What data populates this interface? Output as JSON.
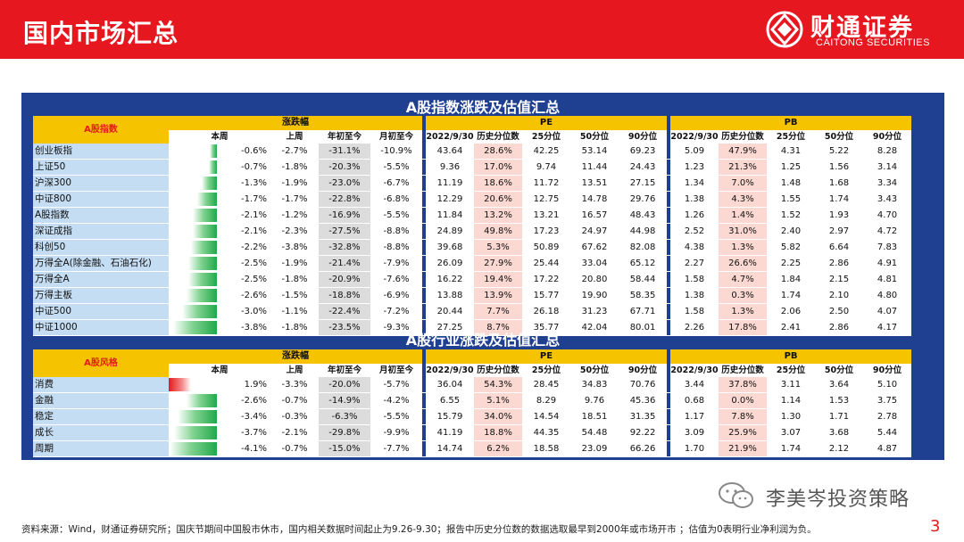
{
  "header": {
    "page_title": "国内市场汇总",
    "logo_cn": "财通证券",
    "logo_en": "CAITONG SECURITIES"
  },
  "colors": {
    "brand_red": "#e7171f",
    "panel_blue": "#1f3f91",
    "header_yellow": "#f6c300",
    "label_blue": "#c5ddf3",
    "highlight_pink": "#fbd8d2",
    "gain_red": "#e41b1b",
    "loss_green": "#21a84a"
  },
  "index_table": {
    "title": "A股指数涨跌及估值汇总",
    "row_header": "A股指数",
    "group_change": "涨跌幅",
    "group_pe": "PE",
    "group_pb": "PB",
    "columns": [
      "本周",
      "上周",
      "年初至今",
      "月初至今",
      "2022/9/30",
      "历史分位数",
      "25分位",
      "50分位",
      "90分位",
      "2022/9/30",
      "历史分位数",
      "25分位",
      "50分位",
      "90分位"
    ],
    "rows": [
      {
        "name": "创业板指",
        "week_pct": -0.6,
        "week": "-0.6%",
        "last_week": "-2.7%",
        "ytd": "-31.1%",
        "mtd": "-10.9%",
        "pe": "43.64",
        "pe_pct": "28.6%",
        "pe25": "42.25",
        "pe50": "53.14",
        "pe90": "69.23",
        "pb": "5.09",
        "pb_pct": "47.9%",
        "pb25": "4.31",
        "pb50": "5.22",
        "pb90": "8.28"
      },
      {
        "name": "上证50",
        "week_pct": -0.7,
        "week": "-0.7%",
        "last_week": "-1.8%",
        "ytd": "-20.3%",
        "mtd": "-5.5%",
        "pe": "9.36",
        "pe_pct": "17.0%",
        "pe25": "9.74",
        "pe50": "11.44",
        "pe90": "24.43",
        "pb": "1.23",
        "pb_pct": "21.3%",
        "pb25": "1.25",
        "pb50": "1.56",
        "pb90": "3.14"
      },
      {
        "name": "沪深300",
        "week_pct": -1.3,
        "week": "-1.3%",
        "last_week": "-1.9%",
        "ytd": "-23.0%",
        "mtd": "-6.7%",
        "pe": "11.19",
        "pe_pct": "18.6%",
        "pe25": "11.72",
        "pe50": "13.51",
        "pe90": "27.15",
        "pb": "1.34",
        "pb_pct": "7.0%",
        "pb25": "1.48",
        "pb50": "1.68",
        "pb90": "3.34"
      },
      {
        "name": "中证800",
        "week_pct": -1.7,
        "week": "-1.7%",
        "last_week": "-1.7%",
        "ytd": "-22.8%",
        "mtd": "-6.8%",
        "pe": "12.29",
        "pe_pct": "20.6%",
        "pe25": "12.75",
        "pe50": "14.78",
        "pe90": "29.76",
        "pb": "1.38",
        "pb_pct": "4.3%",
        "pb25": "1.55",
        "pb50": "1.74",
        "pb90": "3.43"
      },
      {
        "name": "A股指数",
        "week_pct": -2.1,
        "week": "-2.1%",
        "last_week": "-1.2%",
        "ytd": "-16.9%",
        "mtd": "-5.5%",
        "pe": "11.84",
        "pe_pct": "13.2%",
        "pe25": "13.21",
        "pe50": "16.57",
        "pe90": "48.43",
        "pb": "1.26",
        "pb_pct": "1.4%",
        "pb25": "1.52",
        "pb50": "1.93",
        "pb90": "4.70"
      },
      {
        "name": "深证成指",
        "week_pct": -2.1,
        "week": "-2.1%",
        "last_week": "-2.3%",
        "ytd": "-27.5%",
        "mtd": "-8.8%",
        "pe": "24.89",
        "pe_pct": "49.8%",
        "pe25": "17.23",
        "pe50": "24.97",
        "pe90": "44.98",
        "pb": "2.52",
        "pb_pct": "31.0%",
        "pb25": "2.40",
        "pb50": "2.97",
        "pb90": "4.72"
      },
      {
        "name": "科创50",
        "week_pct": -2.2,
        "week": "-2.2%",
        "last_week": "-3.8%",
        "ytd": "-32.8%",
        "mtd": "-8.8%",
        "pe": "39.68",
        "pe_pct": "5.3%",
        "pe25": "50.89",
        "pe50": "67.62",
        "pe90": "82.08",
        "pb": "4.38",
        "pb_pct": "1.3%",
        "pb25": "5.82",
        "pb50": "6.64",
        "pb90": "7.83"
      },
      {
        "name": "万得全A(除金融、石油石化)",
        "week_pct": -2.5,
        "week": "-2.5%",
        "last_week": "-1.9%",
        "ytd": "-21.4%",
        "mtd": "-7.9%",
        "pe": "26.09",
        "pe_pct": "27.9%",
        "pe25": "25.44",
        "pe50": "33.04",
        "pe90": "65.12",
        "pb": "2.27",
        "pb_pct": "26.6%",
        "pb25": "2.25",
        "pb50": "2.86",
        "pb90": "4.91"
      },
      {
        "name": "万得全A",
        "week_pct": -2.5,
        "week": "-2.5%",
        "last_week": "-1.8%",
        "ytd": "-20.9%",
        "mtd": "-7.6%",
        "pe": "16.22",
        "pe_pct": "19.4%",
        "pe25": "17.22",
        "pe50": "20.80",
        "pe90": "58.44",
        "pb": "1.58",
        "pb_pct": "4.7%",
        "pb25": "1.84",
        "pb50": "2.15",
        "pb90": "4.81"
      },
      {
        "name": "万得主板",
        "week_pct": -2.6,
        "week": "-2.6%",
        "last_week": "-1.5%",
        "ytd": "-18.8%",
        "mtd": "-6.9%",
        "pe": "13.88",
        "pe_pct": "13.9%",
        "pe25": "15.77",
        "pe50": "19.90",
        "pe90": "58.35",
        "pb": "1.38",
        "pb_pct": "0.3%",
        "pb25": "1.74",
        "pb50": "2.10",
        "pb90": "4.80"
      },
      {
        "name": "中证500",
        "week_pct": -3.0,
        "week": "-3.0%",
        "last_week": "-1.1%",
        "ytd": "-22.4%",
        "mtd": "-7.2%",
        "pe": "20.44",
        "pe_pct": "7.7%",
        "pe25": "26.18",
        "pe50": "31.23",
        "pe90": "67.71",
        "pb": "1.58",
        "pb_pct": "1.3%",
        "pb25": "2.06",
        "pb50": "2.50",
        "pb90": "4.07"
      },
      {
        "name": "中证1000",
        "week_pct": -3.8,
        "week": "-3.8%",
        "last_week": "-1.8%",
        "ytd": "-23.5%",
        "mtd": "-9.3%",
        "pe": "27.25",
        "pe_pct": "8.7%",
        "pe25": "35.77",
        "pe50": "42.04",
        "pe90": "80.01",
        "pb": "2.26",
        "pb_pct": "17.8%",
        "pb25": "2.41",
        "pb50": "2.86",
        "pb90": "4.17"
      }
    ]
  },
  "style_table": {
    "title": "A股行业涨跌及估值汇总",
    "row_header": "A股风格",
    "group_change": "涨跌幅",
    "group_pe": "PE",
    "group_pb": "PB",
    "columns": [
      "本周",
      "上周",
      "年初至今",
      "月初至今",
      "2022/9/30",
      "历史分位数",
      "25分位",
      "50分位",
      "90分位",
      "2022/9/30",
      "历史分位数",
      "25分位",
      "50分位",
      "90分位"
    ],
    "rows": [
      {
        "name": "消费",
        "week_pct": 1.9,
        "week": "1.9%",
        "last_week": "-3.3%",
        "ytd": "-20.0%",
        "mtd": "-5.7%",
        "pe": "36.04",
        "pe_pct": "54.3%",
        "pe25": "28.45",
        "pe50": "34.83",
        "pe90": "70.76",
        "pb": "3.44",
        "pb_pct": "37.8%",
        "pb25": "3.11",
        "pb50": "3.64",
        "pb90": "5.10"
      },
      {
        "name": "金融",
        "week_pct": -2.6,
        "week": "-2.6%",
        "last_week": "-0.7%",
        "ytd": "-14.9%",
        "mtd": "-4.2%",
        "pe": "6.55",
        "pe_pct": "5.1%",
        "pe25": "8.29",
        "pe50": "9.76",
        "pe90": "45.36",
        "pb": "0.68",
        "pb_pct": "0.0%",
        "pb25": "1.14",
        "pb50": "1.53",
        "pb90": "3.75"
      },
      {
        "name": "稳定",
        "week_pct": -3.4,
        "week": "-3.4%",
        "last_week": "-0.3%",
        "ytd": "-6.3%",
        "mtd": "-5.5%",
        "pe": "15.79",
        "pe_pct": "34.0%",
        "pe25": "14.54",
        "pe50": "18.51",
        "pe90": "31.35",
        "pb": "1.17",
        "pb_pct": "7.8%",
        "pb25": "1.30",
        "pb50": "1.71",
        "pb90": "2.78"
      },
      {
        "name": "成长",
        "week_pct": -3.7,
        "week": "-3.7%",
        "last_week": "-2.1%",
        "ytd": "-29.8%",
        "mtd": "-9.9%",
        "pe": "41.19",
        "pe_pct": "18.8%",
        "pe25": "44.35",
        "pe50": "54.48",
        "pe90": "92.22",
        "pb": "3.09",
        "pb_pct": "25.9%",
        "pb25": "3.07",
        "pb50": "3.68",
        "pb90": "5.44"
      },
      {
        "name": "周期",
        "week_pct": -4.1,
        "week": "-4.1%",
        "last_week": "-0.7%",
        "ytd": "-15.0%",
        "mtd": "-7.7%",
        "pe": "14.74",
        "pe_pct": "6.2%",
        "pe25": "18.58",
        "pe50": "23.09",
        "pe90": "66.26",
        "pb": "1.70",
        "pb_pct": "21.9%",
        "pb25": "1.74",
        "pb50": "2.12",
        "pb90": "4.87"
      }
    ]
  },
  "watermark": "李美岑投资策略",
  "footnote": "资料来源：Wind，财通证券研究所；国庆节期间中国股市休市，国内相关数据时间起止为9.26-9.30；报告中历史分位数的数据选取最早到2000年或市场开市 ；估值为0表明行业净利润为负。",
  "page_number": "3"
}
